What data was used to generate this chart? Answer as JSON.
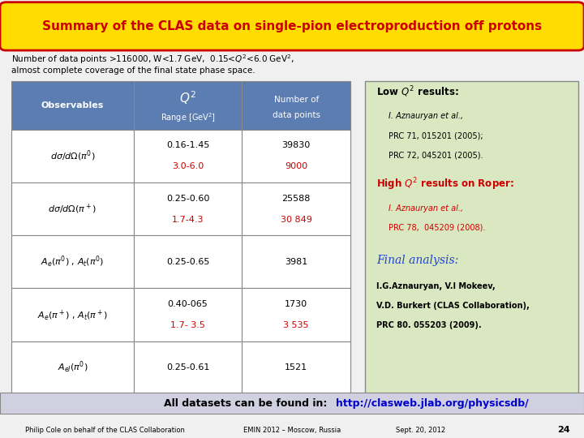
{
  "title": "Summary of the CLAS data on single-pion electroproduction off protons",
  "subtitle_line1": "Number of data points >116000, W<1.7 GeV,  0.15<Q²<6.0 GeV²,",
  "subtitle_line2": " almost complete coverage of the final state phase space.",
  "header_bg": "#5b7db1",
  "header_fg": "#ffffff",
  "red_color": "#cc0000",
  "title_bg": "#ffdd00",
  "title_fg": "#cc0000",
  "title_border": "#cc0000",
  "low_q2_title": "Low Q² results:",
  "low_q2_author": "I. Aznauryan et al.,",
  "low_q2_ref1": "PRC 71, 015201 (2005);",
  "low_q2_ref2": "PRC 72, 045201 (2005).",
  "high_q2_title": "High Q² results on Roper:",
  "high_q2_author": "I. Aznauryan et al.,",
  "high_q2_ref": "PRC 78,  045209 (2008).",
  "final_title": "Final analysis:",
  "final_line1": "I.G.Aznauryan, V.I Mokeev,",
  "final_line2": "V.D. Burkert (CLAS Collaboration),",
  "final_line3": "PRC 80. 055203 (2009).",
  "footer_text": "All datasets can be found in: ",
  "footer_url": "http://clasweb.jlab.org/physicsdb/",
  "footer_left": "Philip Cole on behalf of the CLAS Collaboration",
  "footer_center": "EMIN 2012 – Moscow, Russia",
  "footer_right": "Sept. 20, 2012",
  "page_num": "24",
  "right_box_bg": "#d9e8c0",
  "footer_bg": "#d0d0e0",
  "bg_color": "#f0f0f0",
  "row_data": [
    {
      "obs": "$d\\sigma/d\\Omega(\\pi^0)$",
      "q_blk": "0.16-1.45",
      "q_red": "3.0-6.0",
      "pts_blk": "39830",
      "pts_red": "9000"
    },
    {
      "obs": "$d\\sigma/d\\Omega(\\pi^+)$",
      "q_blk": "0.25-0.60",
      "q_red": "1.7-4.3",
      "pts_blk": "25588",
      "pts_red": "30 849"
    },
    {
      "obs": "$A_e(\\pi^0)$ , $A_t(\\pi^0)$",
      "q_blk": "0.25-0.65",
      "q_red": "",
      "pts_blk": "3981",
      "pts_red": ""
    },
    {
      "obs": "$A_e(\\pi^+)$ , $A_t(\\pi^+)$",
      "q_blk": "0.40-065",
      "q_red": "1.7- 3.5",
      "pts_blk": "1730",
      "pts_red": "3 535"
    },
    {
      "obs": "$A_{el}(\\pi^0)$",
      "q_blk": "0.25-0.61",
      "q_red": "",
      "pts_blk": "1521",
      "pts_red": ""
    }
  ]
}
